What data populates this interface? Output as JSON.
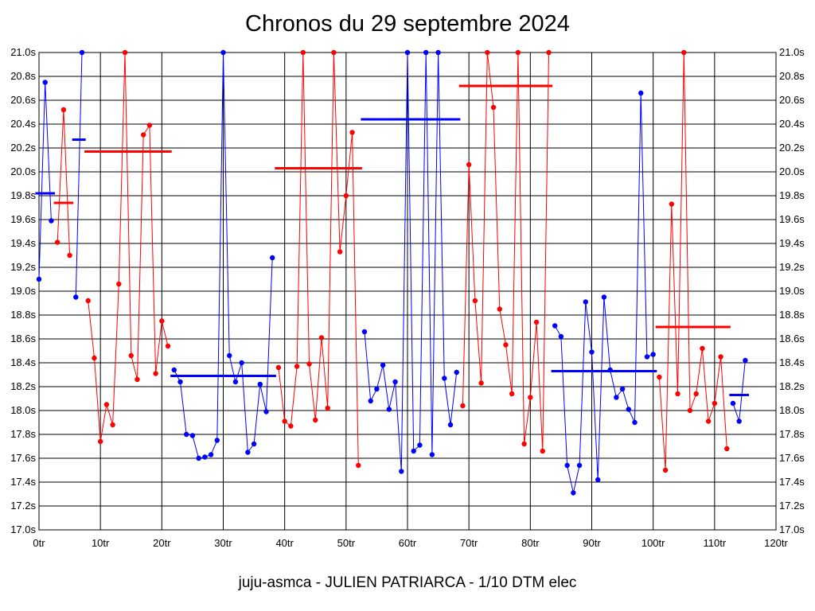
{
  "chart_data": {
    "type": "line",
    "title": "Chronos du 29 septembre 2024",
    "footer": "juju-asmca - JULIEN PATRIARCA - 1/10 DTM elec",
    "xlabel": "",
    "ylabel": "",
    "xlim": [
      0,
      120
    ],
    "ylim": [
      17.0,
      21.0
    ],
    "grid": true,
    "x_ticks": [
      {
        "value": 0,
        "label": "0tr"
      },
      {
        "value": 10,
        "label": "10tr"
      },
      {
        "value": 20,
        "label": "20tr"
      },
      {
        "value": 30,
        "label": "30tr"
      },
      {
        "value": 40,
        "label": "40tr"
      },
      {
        "value": 50,
        "label": "50tr"
      },
      {
        "value": 60,
        "label": "60tr"
      },
      {
        "value": 70,
        "label": "70tr"
      },
      {
        "value": 80,
        "label": "80tr"
      },
      {
        "value": 90,
        "label": "90tr"
      },
      {
        "value": 100,
        "label": "100tr"
      },
      {
        "value": 110,
        "label": "110tr"
      },
      {
        "value": 120,
        "label": "120tr"
      }
    ],
    "y_ticks": [
      {
        "value": 17.0,
        "label": "17.0s"
      },
      {
        "value": 17.2,
        "label": "17.2s"
      },
      {
        "value": 17.4,
        "label": "17.4s"
      },
      {
        "value": 17.6,
        "label": "17.6s"
      },
      {
        "value": 17.8,
        "label": "17.8s"
      },
      {
        "value": 18.0,
        "label": "18.0s"
      },
      {
        "value": 18.2,
        "label": "18.2s"
      },
      {
        "value": 18.4,
        "label": "18.4s"
      },
      {
        "value": 18.6,
        "label": "18.6s"
      },
      {
        "value": 18.8,
        "label": "18.8s"
      },
      {
        "value": 19.0,
        "label": "19.0s"
      },
      {
        "value": 19.2,
        "label": "19.2s"
      },
      {
        "value": 19.4,
        "label": "19.4s"
      },
      {
        "value": 19.6,
        "label": "19.6s"
      },
      {
        "value": 19.8,
        "label": "19.8s"
      },
      {
        "value": 20.0,
        "label": "20.0s"
      },
      {
        "value": 20.2,
        "label": "20.2s"
      },
      {
        "value": 20.4,
        "label": "20.4s"
      },
      {
        "value": 20.6,
        "label": "20.6s"
      },
      {
        "value": 20.8,
        "label": "20.8s"
      },
      {
        "value": 21.0,
        "label": "21.0s"
      }
    ],
    "colors": {
      "blue": "#0000ff",
      "red": "#ff0000",
      "grid": "#000000"
    },
    "segments": [
      {
        "color": "blue",
        "points": [
          [
            0,
            19.1
          ],
          [
            1,
            20.75
          ],
          [
            2,
            19.59
          ]
        ],
        "avg": 19.82,
        "avg_x": [
          0,
          2
        ]
      },
      {
        "color": "red",
        "points": [
          [
            3,
            19.41
          ],
          [
            4,
            20.52
          ],
          [
            5,
            19.3
          ]
        ],
        "avg": 19.74,
        "avg_x": [
          3,
          5
        ]
      },
      {
        "color": "blue",
        "points": [
          [
            6,
            18.95
          ],
          [
            7,
            21.0
          ]
        ],
        "avg": 20.27,
        "avg_x": [
          6,
          7
        ]
      },
      {
        "color": "red",
        "points": [
          [
            8,
            18.92
          ],
          [
            9,
            18.44
          ],
          [
            10,
            17.74
          ],
          [
            11,
            18.05
          ],
          [
            12,
            17.88
          ],
          [
            13,
            19.06
          ],
          [
            14,
            21.0
          ],
          [
            15,
            18.46
          ],
          [
            16,
            18.26
          ],
          [
            17,
            20.31
          ],
          [
            18,
            20.39
          ],
          [
            19,
            18.31
          ],
          [
            20,
            18.75
          ],
          [
            21,
            18.54
          ]
        ],
        "avg": 20.17,
        "avg_x": [
          8,
          21
        ]
      },
      {
        "color": "blue",
        "points": [
          [
            22,
            18.34
          ],
          [
            23,
            18.24
          ],
          [
            24,
            17.8
          ],
          [
            25,
            17.79
          ],
          [
            26,
            17.6
          ],
          [
            27,
            17.61
          ],
          [
            28,
            17.63
          ],
          [
            29,
            17.75
          ],
          [
            30,
            21.0
          ],
          [
            31,
            18.46
          ],
          [
            32,
            18.24
          ],
          [
            33,
            18.4
          ],
          [
            34,
            17.65
          ],
          [
            35,
            17.72
          ],
          [
            36,
            18.22
          ],
          [
            37,
            17.99
          ],
          [
            38,
            19.28
          ]
        ],
        "avg": 18.29,
        "avg_x": [
          22,
          38
        ]
      },
      {
        "color": "red",
        "points": [
          [
            39,
            18.36
          ],
          [
            40,
            17.91
          ],
          [
            41,
            17.87
          ],
          [
            42,
            18.37
          ],
          [
            43,
            21.0
          ],
          [
            44,
            18.39
          ],
          [
            45,
            17.92
          ],
          [
            46,
            18.61
          ],
          [
            47,
            18.02
          ],
          [
            48,
            21.0
          ],
          [
            49,
            19.33
          ],
          [
            50,
            19.8
          ],
          [
            51,
            20.33
          ],
          [
            52,
            17.54
          ]
        ],
        "avg": 20.03,
        "avg_x": [
          39,
          52
        ]
      },
      {
        "color": "blue",
        "points": [
          [
            53,
            18.66
          ],
          [
            54,
            18.08
          ],
          [
            55,
            18.18
          ],
          [
            56,
            18.38
          ],
          [
            57,
            18.01
          ],
          [
            58,
            18.24
          ],
          [
            59,
            17.49
          ],
          [
            60,
            21.0
          ],
          [
            61,
            17.66
          ],
          [
            62,
            17.71
          ],
          [
            63,
            21.0
          ],
          [
            64,
            17.63
          ],
          [
            65,
            21.0
          ],
          [
            66,
            18.27
          ],
          [
            67,
            17.88
          ],
          [
            68,
            18.32
          ]
        ],
        "avg": 20.44,
        "avg_x": [
          53,
          68
        ]
      },
      {
        "color": "red",
        "points": [
          [
            69,
            18.04
          ],
          [
            70,
            20.06
          ],
          [
            71,
            18.92
          ],
          [
            72,
            18.23
          ],
          [
            73,
            21.0
          ],
          [
            74,
            20.54
          ],
          [
            75,
            18.85
          ],
          [
            76,
            18.55
          ],
          [
            77,
            18.14
          ],
          [
            78,
            21.0
          ],
          [
            79,
            17.72
          ],
          [
            80,
            18.11
          ],
          [
            81,
            18.74
          ],
          [
            82,
            17.66
          ],
          [
            83,
            21.0
          ]
        ],
        "avg": 20.72,
        "avg_x": [
          69,
          83
        ]
      },
      {
        "color": "blue",
        "points": [
          [
            84,
            18.71
          ],
          [
            85,
            18.62
          ],
          [
            86,
            17.54
          ],
          [
            87,
            17.31
          ],
          [
            88,
            17.54
          ],
          [
            89,
            18.91
          ],
          [
            90,
            18.49
          ],
          [
            91,
            17.42
          ],
          [
            92,
            18.95
          ],
          [
            93,
            18.34
          ],
          [
            94,
            18.11
          ],
          [
            95,
            18.18
          ],
          [
            96,
            18.01
          ],
          [
            97,
            17.9
          ],
          [
            98,
            20.66
          ],
          [
            99,
            18.45
          ],
          [
            100,
            18.47
          ]
        ],
        "avg": 18.33,
        "avg_x": [
          84,
          100
        ]
      },
      {
        "color": "red",
        "points": [
          [
            101,
            18.28
          ],
          [
            102,
            17.5
          ],
          [
            103,
            19.73
          ],
          [
            104,
            18.14
          ],
          [
            105,
            21.0
          ],
          [
            106,
            18.0
          ],
          [
            107,
            18.14
          ],
          [
            108,
            18.52
          ],
          [
            109,
            17.91
          ],
          [
            110,
            18.06
          ],
          [
            111,
            18.45
          ],
          [
            112,
            17.68
          ]
        ],
        "avg": 18.7,
        "avg_x": [
          101,
          112
        ]
      },
      {
        "color": "blue",
        "points": [
          [
            113,
            18.06
          ],
          [
            114,
            17.91
          ],
          [
            115,
            18.42
          ]
        ],
        "avg": 18.13,
        "avg_x": [
          113,
          115
        ]
      }
    ]
  }
}
